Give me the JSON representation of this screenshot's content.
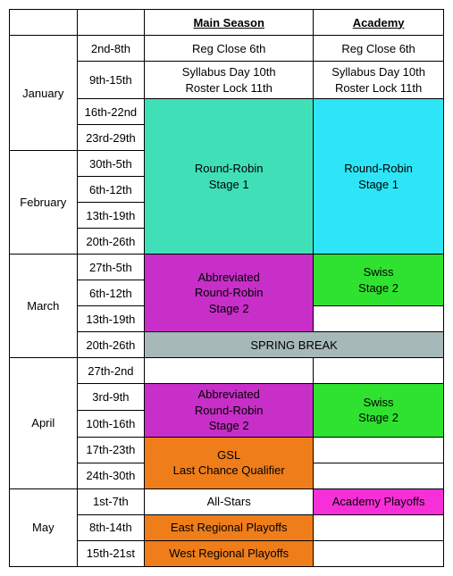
{
  "headers": {
    "main": "Main Season",
    "academy": "Academy"
  },
  "months": {
    "jan": "January",
    "feb": "February",
    "mar": "March",
    "apr": "April",
    "may": "May"
  },
  "dates": {
    "r1": "2nd-8th",
    "r2": "9th-15th",
    "r3": "16th-22nd",
    "r4": "23rd-29th",
    "r5": "30th-5th",
    "r6": "6th-12th",
    "r7": "13th-19th",
    "r8": "20th-26th",
    "r9": "27th-5th",
    "r10": "6th-12th",
    "r11": "13th-19th",
    "r12": "20th-26th",
    "r13": "27th-2nd",
    "r14": "3rd-9th",
    "r15": "10th-16th",
    "r16": "17th-23th",
    "r16b": "17th-23th",
    "r17": "24th-30th",
    "r18": "1st-7th",
    "r19": "8th-14th",
    "r20": "15th-21st"
  },
  "cells": {
    "reg_close": "Reg Close 6th",
    "syllabus_line1": "Syllabus Day 10th",
    "syllabus_line2": "Roster Lock 11th",
    "rr1_line1": "Round-Robin",
    "rr1_line2": "Stage 1",
    "abrr_line1": "Abbreviated",
    "abrr_line2": "Round-Robin",
    "abrr_line3": "Stage 2",
    "swiss_line1": "Swiss",
    "swiss_line2": "Stage 2",
    "spring_break": "SPRING BREAK",
    "gsl_line1": "GSL",
    "gsl_line2": "Last Chance Qualifier",
    "allstars": "All-Stars",
    "acad_playoffs": "Academy Playoffs",
    "east": "East Regional Playoffs",
    "west": "West Regional Playoffs"
  },
  "colors": {
    "teal": "#3fe0b8",
    "cyan": "#2de5f7",
    "magenta": "#c82fc8",
    "green": "#2fe22f",
    "grey": "#a7b8b8",
    "orange": "#ef7d1a",
    "pink": "#f72fd8",
    "white": "#ffffff"
  }
}
